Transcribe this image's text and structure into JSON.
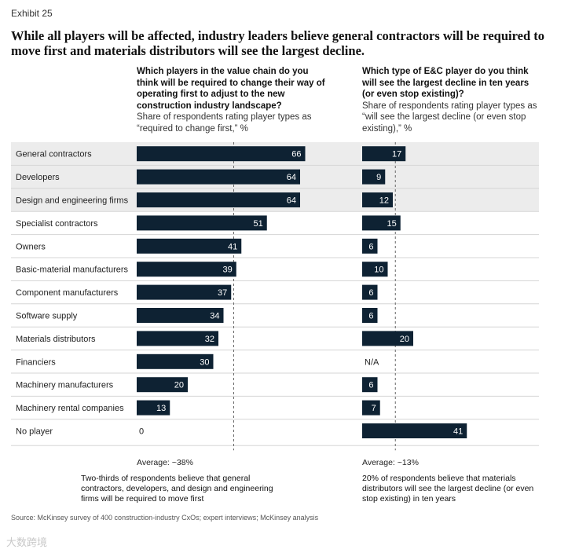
{
  "exhibit_label": "Exhibit 25",
  "headline": "While all players will be affected, industry leaders believe general contractors will be required to move first and materials distributors will see the largest decline.",
  "source": "Source: McKinsey survey of 400 construction-industry CxOs; expert interviews; McKinsey analysis",
  "watermark": "大数跨境",
  "colors": {
    "bar": "#0e2233",
    "highlight": "#ececec",
    "divider": "#d5d5d5",
    "bar_text": "#ffffff"
  },
  "chart_data": [
    {
      "type": "bar",
      "orientation": "horizontal",
      "title": "Which players in the value chain do you think will be required to change their way of operating first to adjust to the new construction industry landscape?",
      "subtitle": "Share of respondents rating player types as “required to change first,” %",
      "categories": [
        "General contractors",
        "Developers",
        "Design and engineering firms",
        "Specialist contractors",
        "Owners",
        "Basic-material manufacturers",
        "Component manufacturers",
        "Software supply",
        "Materials distributors",
        "Financiers",
        "Machinery manufacturers",
        "Machinery rental companies",
        "No player"
      ],
      "values": [
        66,
        64,
        64,
        51,
        41,
        39,
        37,
        34,
        32,
        30,
        20,
        13,
        0
      ],
      "labels": [
        "66",
        "64",
        "64",
        "51",
        "41",
        "39",
        "37",
        "34",
        "32",
        "30",
        "20",
        "13",
        "0"
      ],
      "average_value": 38,
      "average_label": "Average: ~38%",
      "note": "Two-thirds of respondents believe that general contractors, developers, and design and engineering firms will be required to move first"
    },
    {
      "type": "bar",
      "orientation": "horizontal",
      "title": "Which type of E&C player do you think will see the largest decline in ten years (or even stop existing)?",
      "subtitle": "Share of respondents rating player types as “will see the largest decline (or even stop existing),” %",
      "categories": [
        "General contractors",
        "Developers",
        "Design and engineering firms",
        "Specialist contractors",
        "Owners",
        "Basic-material manufacturers",
        "Component manufacturers",
        "Software supply",
        "Materials distributors",
        "Financiers",
        "Machinery manufacturers",
        "Machinery rental companies",
        "No player"
      ],
      "values": [
        17,
        9,
        12,
        15,
        6,
        10,
        6,
        6,
        20,
        null,
        6,
        7,
        41
      ],
      "labels": [
        "17",
        "9",
        "12",
        "15",
        "6",
        "10",
        "6",
        "6",
        "20",
        "N/A",
        "6",
        "7",
        "41"
      ],
      "average_value": 13,
      "average_label": "Average: ~13%",
      "note": "20% of respondents believe that materials distributors will see the largest decline (or even stop existing) in ten years"
    }
  ],
  "highlighted_rows": [
    "General contractors",
    "Developers",
    "Design and engineering firms"
  ]
}
